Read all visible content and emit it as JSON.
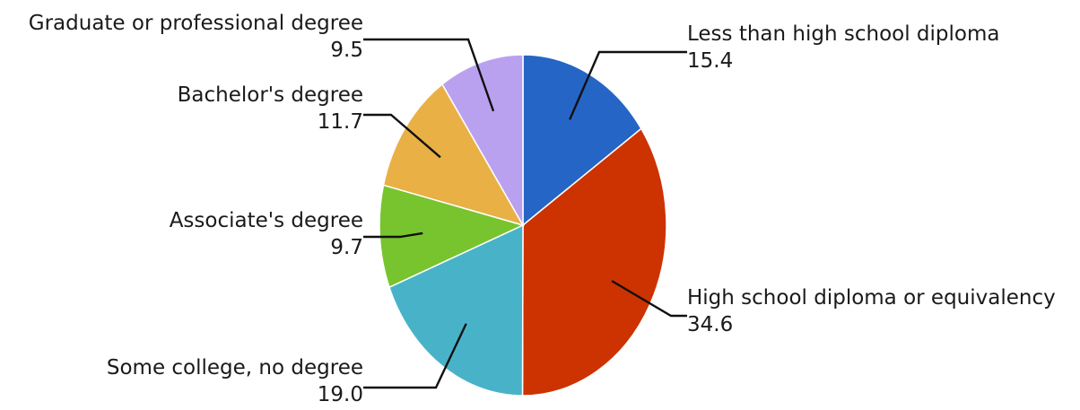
{
  "chart_data": {
    "type": "pie",
    "title": "",
    "unit": "",
    "start_angle_deg": 0,
    "direction": "clockwise",
    "slices": [
      {
        "label": "Less than high school diploma",
        "value": 15.4,
        "value_text": "15.4",
        "color": "#2565c5"
      },
      {
        "label": "High school diploma or equivalency",
        "value": 34.6,
        "value_text": "34.6",
        "color": "#cc3300"
      },
      {
        "label": "Some college, no degree",
        "value": 19.0,
        "value_text": "19.0",
        "color": "#48b3c8"
      },
      {
        "label": "Associate's degree",
        "value": 9.7,
        "value_text": "9.7",
        "color": "#78c42e"
      },
      {
        "label": "Bachelor's degree",
        "value": 11.7,
        "value_text": "11.7",
        "color": "#e9b046"
      },
      {
        "label": "Graduate or professional degree",
        "value": 9.5,
        "value_text": "9.5",
        "color": "#b9a1ef"
      }
    ]
  }
}
